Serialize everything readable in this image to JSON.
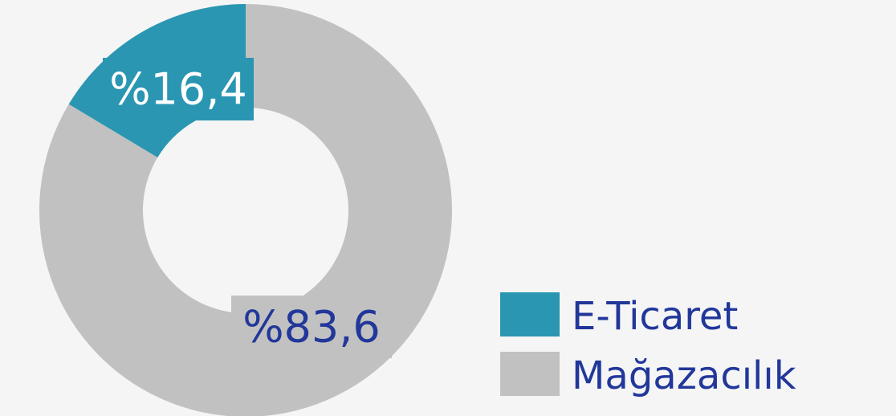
{
  "chart_data": {
    "type": "donut",
    "categories": [
      "E-Ticaret",
      "Mağazacılık"
    ],
    "values": [
      16.4,
      83.6
    ],
    "value_labels": [
      "%16,4",
      "%83,6"
    ],
    "colors": [
      "#2a96b2",
      "#c1c1c1"
    ],
    "label_colors": [
      "#ffffff",
      "#22379a"
    ]
  }
}
